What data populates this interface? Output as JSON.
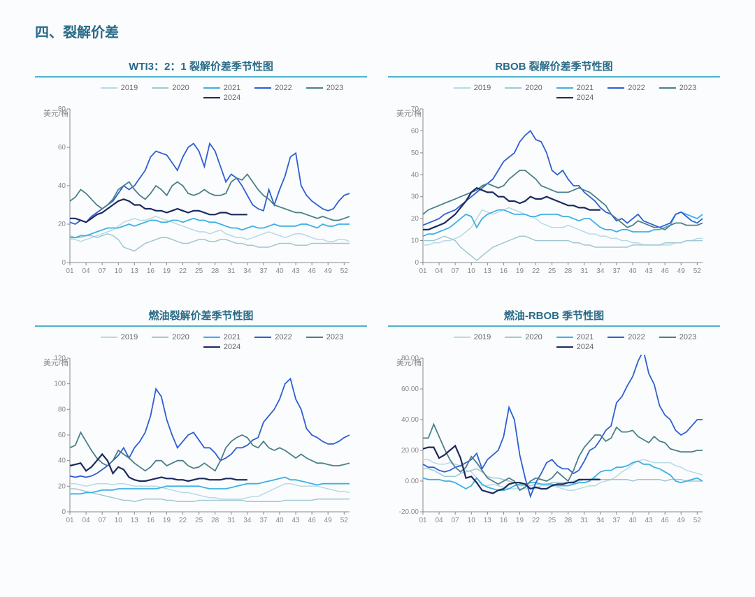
{
  "section_title": "四、裂解价差",
  "underline_color": "#4fb3c9",
  "axis_color": "#888888",
  "tick_fontsize": 10,
  "series_meta": [
    {
      "key": "y2019",
      "label": "2019",
      "color": "#b7d9e6",
      "width": 1.5
    },
    {
      "key": "y2020",
      "label": "2020",
      "color": "#9fc7d3",
      "width": 1.5
    },
    {
      "key": "y2021",
      "label": "2021",
      "color": "#3db0e4",
      "width": 1.8
    },
    {
      "key": "y2022",
      "label": "2022",
      "color": "#2e5fd1",
      "width": 1.8
    },
    {
      "key": "y2023",
      "label": "2023",
      "color": "#4a8088",
      "width": 1.8
    },
    {
      "key": "y2024",
      "label": "2024",
      "color": "#1b2a5e",
      "width": 2.2
    }
  ],
  "x_categories": [
    "01",
    "02",
    "03",
    "04",
    "05",
    "06",
    "07",
    "08",
    "09",
    "10",
    "11",
    "12",
    "13",
    "14",
    "15",
    "16",
    "17",
    "18",
    "19",
    "20",
    "21",
    "22",
    "23",
    "24",
    "25",
    "26",
    "27",
    "28",
    "29",
    "30",
    "31",
    "32",
    "33",
    "34",
    "35",
    "36",
    "37",
    "38",
    "39",
    "40",
    "41",
    "42",
    "43",
    "44",
    "45",
    "46",
    "47",
    "48",
    "49",
    "50",
    "51",
    "52",
    "53"
  ],
  "x_tick_labels": [
    "01",
    "04",
    "07",
    "10",
    "13",
    "16",
    "19",
    "22",
    "25",
    "28",
    "31",
    "34",
    "37",
    "40",
    "43",
    "46",
    "49",
    "52"
  ],
  "charts": [
    {
      "title": "WTI3：2：1 裂解价差季节性图",
      "ylabel": "美元/桶",
      "ymin": 0,
      "ymax": 80,
      "ytick_step": 20,
      "series": {
        "y2019": [
          12,
          12,
          11,
          12,
          13,
          14,
          15,
          16,
          17,
          19,
          21,
          22,
          23,
          22,
          22,
          23,
          24,
          23,
          22,
          21,
          20,
          19,
          18,
          17,
          16,
          16,
          15,
          16,
          17,
          15,
          14,
          13,
          13,
          12,
          13,
          14,
          15,
          16,
          15,
          14,
          13,
          14,
          15,
          15,
          14,
          13,
          12,
          12,
          11,
          11,
          12,
          12,
          11
        ],
        "y2020": [
          14,
          13,
          13,
          14,
          14,
          13,
          14,
          15,
          14,
          12,
          8,
          7,
          6,
          8,
          10,
          11,
          12,
          13,
          13,
          12,
          11,
          10,
          10,
          11,
          12,
          12,
          11,
          11,
          12,
          12,
          11,
          10,
          10,
          9,
          9,
          8,
          8,
          8,
          9,
          10,
          10,
          10,
          9,
          9,
          9,
          10,
          10,
          10,
          10,
          10,
          10,
          10,
          10
        ],
        "y2021": [
          13,
          13,
          14,
          14,
          15,
          16,
          17,
          18,
          18,
          18,
          19,
          20,
          19,
          20,
          21,
          22,
          22,
          21,
          21,
          22,
          22,
          21,
          22,
          23,
          22,
          22,
          21,
          21,
          20,
          19,
          18,
          18,
          17,
          18,
          19,
          18,
          18,
          19,
          20,
          19,
          19,
          19,
          19,
          20,
          20,
          19,
          18,
          20,
          19,
          19,
          20,
          20,
          20
        ],
        "y2022": [
          21,
          20,
          22,
          21,
          24,
          26,
          28,
          30,
          32,
          36,
          40,
          38,
          40,
          44,
          48,
          55,
          58,
          57,
          56,
          52,
          48,
          55,
          60,
          62,
          58,
          50,
          62,
          58,
          50,
          42,
          46,
          44,
          40,
          35,
          30,
          28,
          27,
          38,
          30,
          38,
          45,
          55,
          57,
          40,
          35,
          32,
          30,
          28,
          27,
          28,
          32,
          35,
          36
        ],
        "y2023": [
          32,
          34,
          38,
          36,
          33,
          30,
          28,
          30,
          33,
          38,
          40,
          42,
          38,
          35,
          33,
          36,
          40,
          38,
          35,
          40,
          42,
          40,
          36,
          35,
          36,
          38,
          36,
          35,
          35,
          36,
          42,
          44,
          43,
          46,
          42,
          38,
          35,
          33,
          30,
          29,
          28,
          27,
          26,
          26,
          25,
          24,
          23,
          24,
          23,
          22,
          22,
          23,
          24
        ],
        "y2024": [
          23,
          23,
          22,
          21,
          23,
          25,
          26,
          28,
          30,
          32,
          33,
          32,
          30,
          30,
          28,
          28,
          27,
          27,
          26,
          27,
          28,
          27,
          26,
          27,
          27,
          26,
          25,
          25,
          26,
          26,
          25,
          25,
          25,
          25
        ]
      }
    },
    {
      "title": "RBOB 裂解价差季节性图",
      "ylabel": "美元/桶",
      "ymin": 0,
      "ymax": 70,
      "ytick_step": 10,
      "series": {
        "y2019": [
          8,
          8,
          9,
          9,
          10,
          10,
          11,
          12,
          14,
          16,
          20,
          24,
          23,
          22,
          23,
          24,
          25,
          24,
          23,
          22,
          21,
          20,
          18,
          17,
          16,
          16,
          16,
          17,
          16,
          15,
          14,
          13,
          13,
          12,
          12,
          11,
          11,
          10,
          10,
          9,
          9,
          8,
          8,
          8,
          8,
          8,
          8,
          9,
          9,
          10,
          10,
          11,
          11
        ],
        "y2020": [
          10,
          10,
          10,
          11,
          12,
          11,
          10,
          7,
          5,
          3,
          1,
          3,
          5,
          7,
          8,
          9,
          10,
          11,
          12,
          12,
          11,
          10,
          10,
          10,
          10,
          10,
          10,
          10,
          9,
          9,
          8,
          8,
          7,
          7,
          7,
          7,
          7,
          7,
          7,
          8,
          8,
          8,
          8,
          8,
          8,
          9,
          9,
          9,
          9,
          10,
          10,
          10,
          10
        ],
        "y2021": [
          12,
          13,
          13,
          14,
          15,
          16,
          18,
          20,
          22,
          21,
          16,
          20,
          22,
          23,
          24,
          24,
          23,
          22,
          22,
          22,
          21,
          21,
          22,
          22,
          22,
          22,
          21,
          21,
          20,
          19,
          20,
          20,
          18,
          16,
          15,
          15,
          14,
          15,
          15,
          14,
          14,
          14,
          14,
          15,
          15,
          16,
          17,
          22,
          23,
          22,
          21,
          20,
          22
        ],
        "y2022": [
          17,
          18,
          19,
          20,
          22,
          23,
          24,
          26,
          28,
          30,
          32,
          34,
          36,
          38,
          42,
          46,
          48,
          50,
          55,
          58,
          60,
          56,
          55,
          50,
          42,
          40,
          42,
          38,
          35,
          35,
          32,
          30,
          28,
          25,
          23,
          22,
          19,
          20,
          18,
          20,
          22,
          19,
          18,
          17,
          16,
          17,
          18,
          22,
          23,
          21,
          19,
          18,
          20
        ],
        "y2023": [
          22,
          24,
          25,
          26,
          27,
          28,
          29,
          30,
          31,
          32,
          33,
          35,
          36,
          35,
          34,
          35,
          38,
          40,
          42,
          42,
          40,
          38,
          35,
          34,
          33,
          32,
          32,
          32,
          33,
          34,
          33,
          32,
          30,
          28,
          26,
          22,
          20,
          18,
          16,
          17,
          19,
          18,
          17,
          16,
          16,
          15,
          17,
          18,
          18,
          17,
          17,
          17,
          18
        ],
        "y2024": [
          15,
          15,
          16,
          17,
          18,
          20,
          22,
          25,
          28,
          32,
          34,
          33,
          32,
          32,
          30,
          30,
          28,
          28,
          27,
          28,
          30,
          29,
          29,
          30,
          29,
          28,
          27,
          26,
          26,
          25,
          25,
          24,
          24,
          24
        ]
      }
    },
    {
      "title": "燃油裂解价差季节性图",
      "ylabel": "美元/桶",
      "ymin": 0,
      "ymax": 120,
      "ytick_step": 20,
      "series": {
        "y2019": [
          22,
          22,
          21,
          20,
          21,
          22,
          22,
          22,
          21,
          22,
          22,
          21,
          20,
          20,
          20,
          20,
          20,
          19,
          18,
          17,
          16,
          15,
          15,
          14,
          13,
          12,
          11,
          11,
          10,
          10,
          10,
          10,
          10,
          11,
          12,
          12,
          14,
          16,
          18,
          20,
          22,
          22,
          21,
          20,
          20,
          20,
          20,
          19,
          18,
          17,
          16,
          16,
          15
        ],
        "y2020": [
          18,
          18,
          17,
          16,
          15,
          14,
          13,
          12,
          11,
          10,
          9,
          9,
          8,
          9,
          10,
          10,
          10,
          10,
          9,
          9,
          8,
          8,
          8,
          8,
          9,
          9,
          9,
          9,
          9,
          9,
          9,
          9,
          9,
          8,
          8,
          8,
          8,
          8,
          8,
          8,
          9,
          9,
          9,
          9,
          9,
          9,
          10,
          10,
          10,
          10,
          10,
          10,
          10
        ],
        "y2021": [
          14,
          14,
          14,
          15,
          15,
          16,
          17,
          17,
          17,
          18,
          18,
          18,
          18,
          18,
          18,
          18,
          18,
          19,
          20,
          20,
          20,
          20,
          20,
          20,
          20,
          19,
          18,
          18,
          18,
          18,
          19,
          20,
          21,
          22,
          22,
          22,
          23,
          24,
          25,
          26,
          27,
          25,
          25,
          24,
          23,
          22,
          21,
          22,
          22,
          22,
          22,
          22,
          22
        ],
        "y2022": [
          28,
          27,
          28,
          27,
          28,
          30,
          33,
          36,
          40,
          44,
          50,
          42,
          50,
          55,
          62,
          75,
          96,
          90,
          72,
          60,
          50,
          55,
          60,
          62,
          56,
          50,
          50,
          46,
          40,
          42,
          45,
          50,
          50,
          52,
          56,
          58,
          70,
          75,
          80,
          88,
          100,
          104,
          88,
          80,
          65,
          60,
          58,
          55,
          53,
          53,
          55,
          58,
          60
        ],
        "y2023": [
          50,
          52,
          62,
          55,
          48,
          42,
          38,
          36,
          40,
          48,
          45,
          42,
          38,
          35,
          32,
          35,
          40,
          40,
          36,
          38,
          40,
          40,
          36,
          34,
          35,
          38,
          35,
          32,
          40,
          50,
          55,
          58,
          60,
          58,
          52,
          50,
          55,
          50,
          48,
          50,
          48,
          45,
          42,
          45,
          42,
          40,
          38,
          38,
          37,
          36,
          36,
          37,
          38
        ],
        "y2024": [
          36,
          37,
          38,
          32,
          35,
          40,
          45,
          40,
          30,
          35,
          33,
          27,
          25,
          24,
          24,
          25,
          26,
          27,
          26,
          26,
          25,
          25,
          24,
          25,
          26,
          26,
          25,
          25,
          25,
          26,
          26,
          25,
          25,
          25
        ]
      }
    },
    {
      "title": "燃油-RBOB 季节性图",
      "ylabel": "美元/桶",
      "ymin": -20,
      "ymax": 80,
      "ytick_step": 20,
      "ytick_format": "fixed2",
      "series": {
        "y2019": [
          14,
          14,
          12,
          11,
          11,
          12,
          11,
          10,
          7,
          6,
          2,
          -3,
          -3,
          -2,
          -3,
          -4,
          -5,
          -5,
          -5,
          -5,
          -5,
          -5,
          -3,
          -3,
          -3,
          -4,
          -5,
          -6,
          -6,
          -5,
          -4,
          -3,
          -3,
          -1,
          0,
          1,
          3,
          6,
          8,
          11,
          13,
          14,
          13,
          12,
          12,
          12,
          12,
          10,
          9,
          7,
          6,
          5,
          4
        ],
        "y2020": [
          8,
          8,
          7,
          5,
          3,
          3,
          3,
          5,
          6,
          7,
          8,
          6,
          3,
          2,
          2,
          1,
          0,
          -1,
          -3,
          -3,
          -3,
          -2,
          -2,
          -2,
          -1,
          -1,
          -1,
          -1,
          0,
          0,
          1,
          1,
          2,
          1,
          1,
          1,
          1,
          1,
          1,
          0,
          1,
          1,
          1,
          1,
          1,
          0,
          1,
          1,
          1,
          0,
          0,
          0,
          0
        ],
        "y2021": [
          2,
          1,
          1,
          1,
          0,
          0,
          -1,
          -3,
          -5,
          -3,
          2,
          -2,
          -4,
          -5,
          -6,
          -6,
          -5,
          -3,
          -2,
          -2,
          -1,
          -1,
          -2,
          -2,
          -2,
          -3,
          -3,
          -3,
          -2,
          -1,
          -1,
          0,
          3,
          6,
          7,
          7,
          9,
          9,
          10,
          12,
          13,
          11,
          11,
          9,
          8,
          6,
          4,
          0,
          -1,
          0,
          1,
          2,
          0
        ],
        "y2022": [
          11,
          9,
          9,
          7,
          6,
          7,
          9,
          10,
          12,
          14,
          18,
          8,
          14,
          17,
          20,
          29,
          48,
          40,
          17,
          2,
          -10,
          -1,
          5,
          12,
          14,
          10,
          8,
          8,
          5,
          7,
          13,
          20,
          22,
          27,
          33,
          36,
          51,
          55,
          62,
          68,
          78,
          85,
          70,
          63,
          49,
          43,
          40,
          33,
          30,
          32,
          36,
          40,
          40
        ],
        "y2023": [
          28,
          28,
          37,
          29,
          21,
          14,
          9,
          6,
          9,
          16,
          12,
          7,
          2,
          0,
          -2,
          0,
          2,
          0,
          -6,
          -4,
          0,
          2,
          1,
          0,
          2,
          6,
          3,
          0,
          7,
          16,
          22,
          26,
          30,
          30,
          26,
          28,
          35,
          32,
          32,
          33,
          29,
          27,
          25,
          29,
          26,
          25,
          21,
          20,
          19,
          19,
          19,
          20,
          20
        ],
        "y2024": [
          21,
          22,
          22,
          15,
          17,
          20,
          23,
          15,
          2,
          3,
          -1,
          -6,
          -7,
          -8,
          -6,
          -5,
          -2,
          -1,
          -1,
          -2,
          -5,
          -4,
          -5,
          -5,
          -3,
          -2,
          -2,
          -1,
          -1,
          1,
          1,
          1,
          1,
          1
        ]
      }
    }
  ]
}
